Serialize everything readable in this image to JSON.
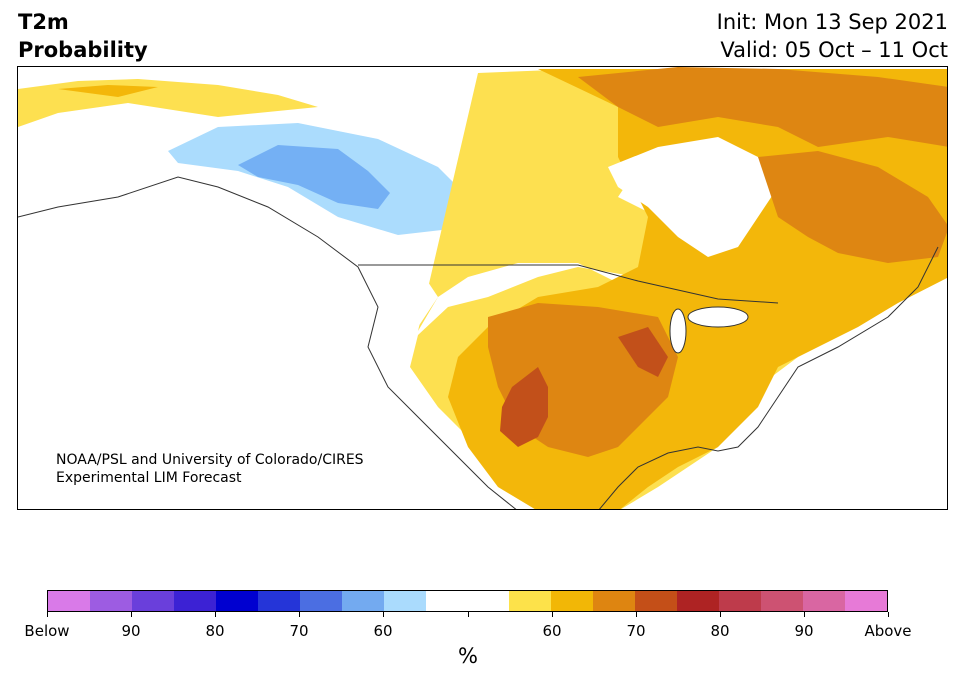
{
  "header": {
    "title_line1": "T2m",
    "title_line2": "Probability",
    "init": "Init: Mon 13 Sep 2021",
    "valid": "Valid: 05 Oct – 11 Oct"
  },
  "map": {
    "credit_line1": "NOAA/PSL and University of Colorado/CIRES",
    "credit_line2": "Experimental LIM Forecast",
    "colors": {
      "land_neutral": "#ffffff",
      "above_55": "#fde050",
      "above_60": "#f3b70a",
      "above_65": "#de8612",
      "above_70": "#c2501a",
      "below_55": "#abdcfd",
      "below_60": "#74b0f4"
    }
  },
  "colorbar": {
    "colors": [
      "#d97ae8",
      "#9d5ce2",
      "#6a3fdb",
      "#3c22d4",
      "#0000d0",
      "#2535d8",
      "#4b6ee2",
      "#73aaf0",
      "#aadbfd",
      "#ffffff",
      "#ffffff",
      "#fde24a",
      "#f2b706",
      "#de8511",
      "#c44f18",
      "#ae2323",
      "#be3b4b",
      "#cd5272",
      "#d966a2",
      "#e77ad7"
    ],
    "tick_labels": [
      "Below",
      "90",
      "80",
      "70",
      "60",
      "",
      "60",
      "70",
      "80",
      "90",
      "Above"
    ],
    "unit": "%"
  }
}
